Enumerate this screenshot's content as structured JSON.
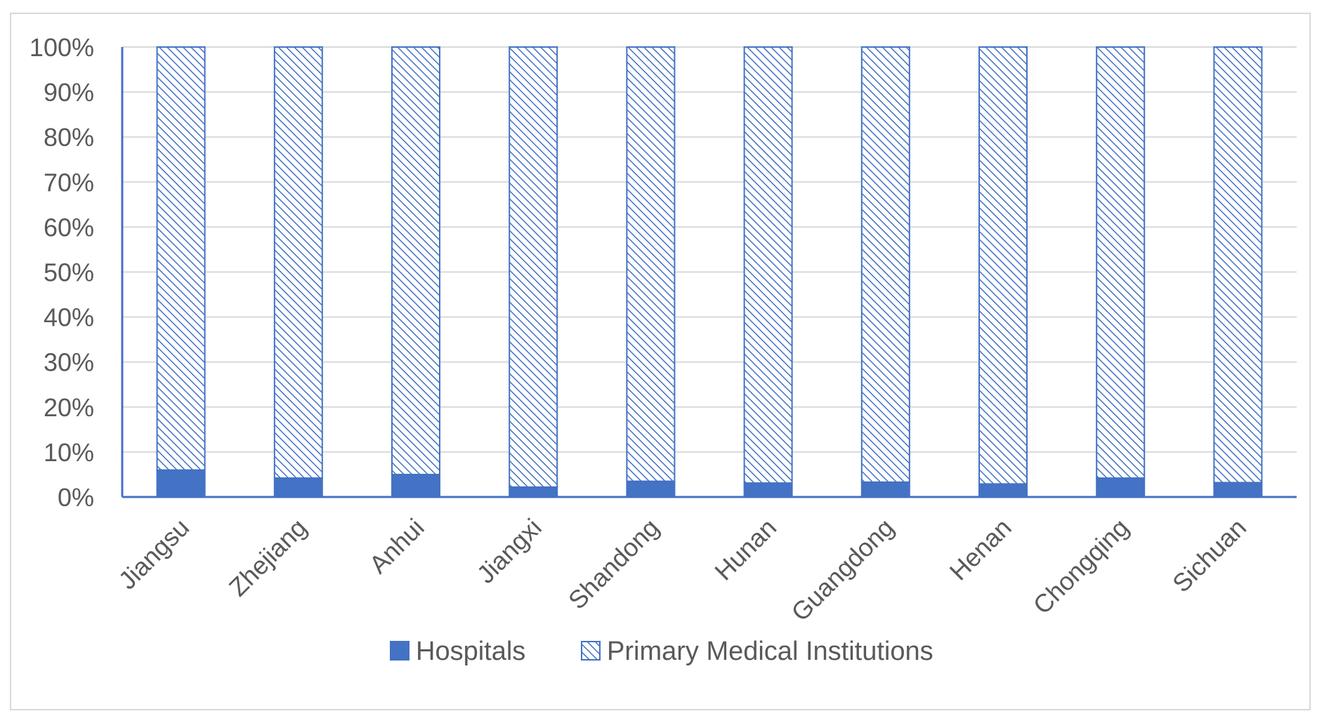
{
  "chart_data": {
    "type": "bar",
    "stacked": true,
    "percent": true,
    "categories": [
      "Jiangsu",
      "Zhejiang",
      "Anhui",
      "Jiangxi",
      "Shandong",
      "Hunan",
      "Guangdong",
      "Henan",
      "Chongqing",
      "Sichuan"
    ],
    "series": [
      {
        "name": "Hospitals",
        "values": [
          6,
          4.2,
          5,
          2.2,
          3.5,
          3.1,
          3.3,
          2.9,
          4.2,
          3.2
        ],
        "fill": "solid"
      },
      {
        "name": "Primary Medical Institutions",
        "values": [
          94,
          95.8,
          95,
          97.8,
          96.5,
          96.9,
          96.7,
          97.1,
          95.8,
          96.8
        ],
        "fill": "hatched"
      }
    ],
    "ylim": [
      0,
      100
    ],
    "yticks": [
      "0%",
      "10%",
      "20%",
      "30%",
      "40%",
      "50%",
      "60%",
      "70%",
      "80%",
      "90%",
      "100%"
    ],
    "grid": true,
    "legend_position": "bottom",
    "colors": {
      "bar": "#4472c4",
      "grid": "#d9d9d9",
      "text": "#595959",
      "frame": "#d9d9d9"
    }
  }
}
